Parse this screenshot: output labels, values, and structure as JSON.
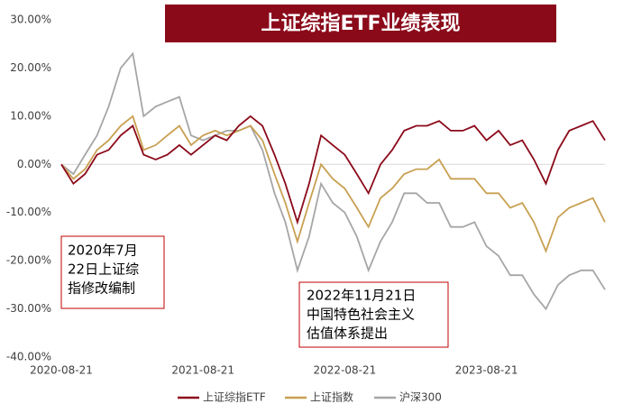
{
  "chart_data": {
    "type": "line",
    "title": "上证综指ETF业绩表现",
    "x": [
      "2020-08-21",
      "2020-09-21",
      "2020-10-21",
      "2020-11-21",
      "2020-12-21",
      "2021-01-21",
      "2021-02-21",
      "2021-03-21",
      "2021-04-21",
      "2021-05-21",
      "2021-06-21",
      "2021-07-21",
      "2021-08-21",
      "2021-09-21",
      "2021-10-21",
      "2021-11-21",
      "2021-12-21",
      "2022-01-21",
      "2022-02-21",
      "2022-03-21",
      "2022-04-21",
      "2022-05-21",
      "2022-06-21",
      "2022-07-21",
      "2022-08-21",
      "2022-09-21",
      "2022-10-21",
      "2022-11-21",
      "2022-12-21",
      "2023-01-21",
      "2023-02-21",
      "2023-03-21",
      "2023-04-21",
      "2023-05-21",
      "2023-06-21",
      "2023-07-21",
      "2023-08-21",
      "2023-09-21",
      "2023-10-21",
      "2023-11-21",
      "2023-12-21",
      "2024-01-21",
      "2024-02-21",
      "2024-03-21",
      "2024-04-21",
      "2024-05-21",
      "2024-06-21"
    ],
    "xlim": [
      "2020-08-21",
      "2024-06-21"
    ],
    "xticks": [
      "2020-08-21",
      "2021-08-21",
      "2022-08-21",
      "2023-08-21"
    ],
    "ylim": [
      -40,
      30
    ],
    "yticks": [
      {
        "value": -40,
        "label": "-40.00%"
      },
      {
        "value": -30,
        "label": "-30.00%"
      },
      {
        "value": -20,
        "label": "-20.00%"
      },
      {
        "value": -10,
        "label": "-10.00%"
      },
      {
        "value": 0,
        "label": "0.00%"
      },
      {
        "value": 10,
        "label": "10.00%"
      },
      {
        "value": 20,
        "label": "20.00%"
      },
      {
        "value": 30,
        "label": "30.00%"
      }
    ],
    "series": [
      {
        "name": "上证综指ETF",
        "color": "#8b0a1a",
        "values": [
          0,
          -4,
          -2,
          2,
          3,
          6,
          8,
          2,
          1,
          2,
          4,
          2,
          4,
          6,
          5,
          8,
          10,
          8,
          2,
          -4,
          -12,
          -4,
          6,
          4,
          2,
          -2,
          -6,
          0,
          3,
          7,
          8,
          8,
          9,
          7,
          7,
          8,
          5,
          7,
          4,
          5,
          1,
          -4,
          3,
          7,
          8,
          9,
          5
        ]
      },
      {
        "name": "上证指数",
        "color": "#c8a052",
        "values": [
          0,
          -3,
          -1,
          3,
          5,
          8,
          10,
          3,
          4,
          6,
          8,
          4,
          6,
          7,
          6,
          7,
          8,
          5,
          -2,
          -8,
          -16,
          -8,
          0,
          -3,
          -5,
          -9,
          -13,
          -7,
          -5,
          -2,
          -1,
          -1,
          1,
          -3,
          -3,
          -3,
          -6,
          -6,
          -9,
          -8,
          -12,
          -18,
          -11,
          -9,
          -8,
          -7,
          -12
        ]
      },
      {
        "name": "沪深300",
        "color": "#a6a6a6",
        "values": [
          0,
          -2,
          2,
          6,
          12,
          20,
          23,
          10,
          12,
          13,
          14,
          6,
          5,
          6,
          7,
          7,
          8,
          3,
          -6,
          -12,
          -22,
          -15,
          -4,
          -8,
          -10,
          -15,
          -22,
          -16,
          -12,
          -6,
          -6,
          -8,
          -8,
          -13,
          -13,
          -12,
          -17,
          -19,
          -23,
          -23,
          -27,
          -30,
          -25,
          -23,
          -22,
          -22,
          -26
        ]
      }
    ],
    "annotations": [
      [
        "2020年7月",
        "22日上证综",
        "指修改编制"
      ],
      [
        "2022年11月21日",
        "中国特色社会主义",
        "估值体系提出"
      ]
    ]
  }
}
